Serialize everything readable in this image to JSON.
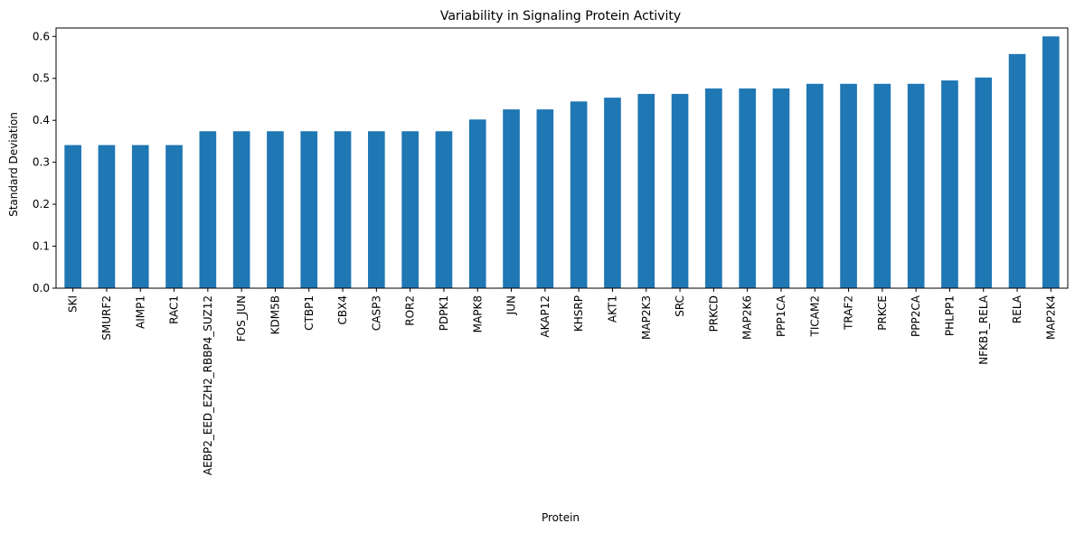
{
  "chart_data": {
    "type": "bar",
    "title": "Variability in Signaling Protein Activity",
    "xlabel": "Protein",
    "ylabel": "Standard Deviation",
    "ylim": [
      0,
      0.62
    ],
    "yticks": [
      0.0,
      0.1,
      0.2,
      0.3,
      0.4,
      0.5,
      0.6
    ],
    "ytick_labels": [
      "0.0",
      "0.1",
      "0.2",
      "0.3",
      "0.4",
      "0.5",
      "0.6"
    ],
    "grid": false,
    "legend": "none",
    "bar_color": "#1f77b4",
    "categories": [
      "SKI",
      "SMURF2",
      "AIMP1",
      "RAC1",
      "AEBP2_EED_EZH2_RBBP4_SUZ12",
      "FOS_JUN",
      "KDM5B",
      "CTBP1",
      "CBX4",
      "CASP3",
      "ROR2",
      "PDPK1",
      "MAPK8",
      "JUN",
      "AKAP12",
      "KHSRP",
      "AKT1",
      "MAP2K3",
      "SRC",
      "PRKCD",
      "MAP2K6",
      "PPP1CA",
      "TICAM2",
      "TRAF2",
      "PRKCE",
      "PPP2CA",
      "PHLPP1",
      "NFKB1_RELA",
      "RELA",
      "MAP2K4"
    ],
    "values": [
      0.341,
      0.341,
      0.341,
      0.341,
      0.374,
      0.374,
      0.374,
      0.374,
      0.374,
      0.374,
      0.374,
      0.374,
      0.402,
      0.426,
      0.426,
      0.445,
      0.454,
      0.463,
      0.463,
      0.476,
      0.476,
      0.476,
      0.487,
      0.487,
      0.487,
      0.487,
      0.495,
      0.502,
      0.558,
      0.6
    ]
  }
}
